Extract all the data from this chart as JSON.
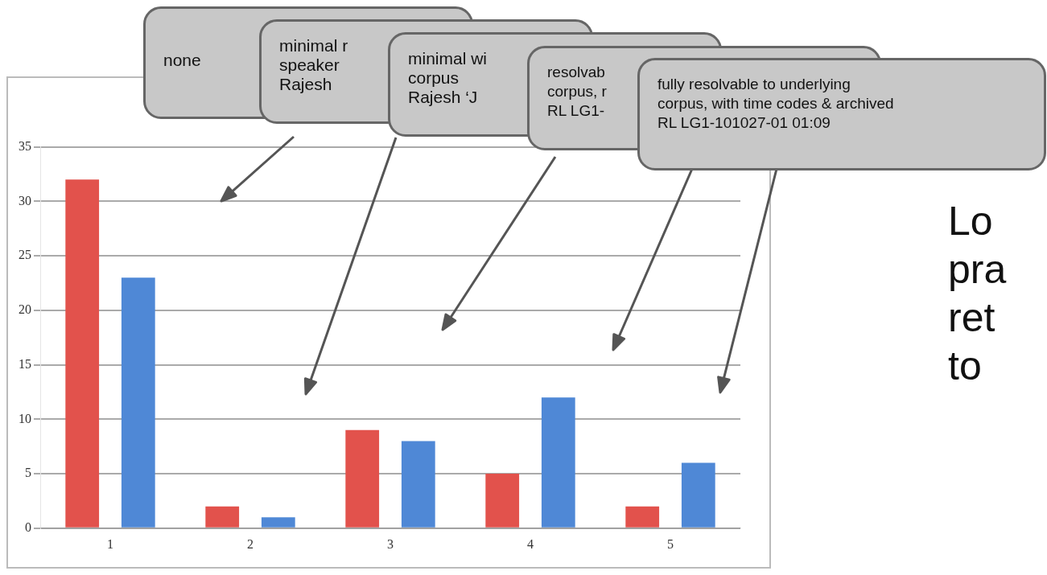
{
  "chart_data": {
    "type": "bar",
    "categories": [
      "1",
      "2",
      "3",
      "4",
      "5"
    ],
    "series": [
      {
        "color": "#e2524c",
        "values": [
          32,
          2,
          9,
          5,
          2
        ]
      },
      {
        "color": "#4f88d6",
        "values": [
          23,
          1,
          8,
          12,
          6
        ]
      }
    ],
    "ylim": [
      0,
      35
    ],
    "yticks": [
      0,
      5,
      10,
      15,
      20,
      25,
      30,
      35
    ],
    "grid": "y",
    "legend": false,
    "annotations": [
      "none",
      "minimal r\nspeaker\nRajesh",
      "minimal wi\ncorpus\nRajesh ‘J",
      "resolvab\ncorpus, r\nRL LG1-",
      "fully resolvable to underlying\ncorpus, with time codes & archived\nRL LG1-101027-01 01:09",
      "Lo\npra\nret\nto"
    ]
  }
}
